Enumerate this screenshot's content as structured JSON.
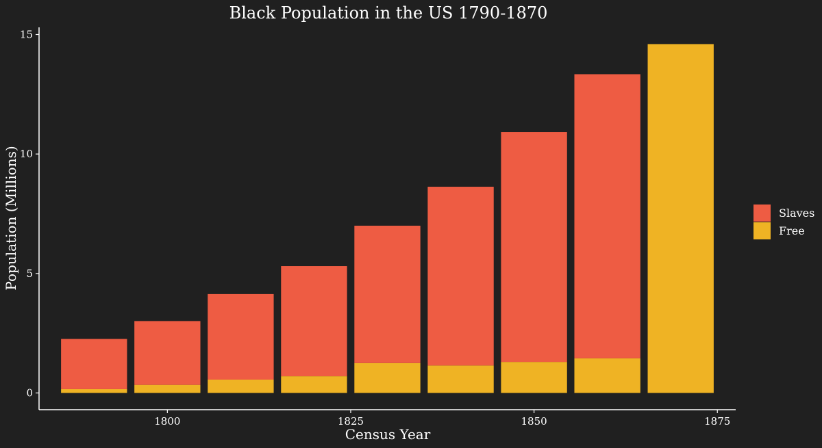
{
  "chart_data": {
    "type": "bar",
    "stacked": true,
    "title": "Black Population in the US 1790-1870",
    "xlabel": "Census Year",
    "ylabel": "Population (Millions)",
    "x": [
      1790,
      1800,
      1810,
      1820,
      1830,
      1840,
      1850,
      1860,
      1870
    ],
    "series": [
      {
        "name": "Slaves",
        "values": [
          2.1,
          2.67,
          3.58,
          4.61,
          5.75,
          7.48,
          9.62,
          11.89,
          0
        ],
        "color": "#ee5c43"
      },
      {
        "name": "Free",
        "values": [
          0.16,
          0.34,
          0.56,
          0.7,
          1.25,
          1.15,
          1.3,
          1.45,
          14.6
        ],
        "color": "#efb324"
      }
    ],
    "xlim": [
      1782.5,
      1877.5
    ],
    "ylim": [
      -0.7,
      15.3
    ],
    "xticks": [
      1800,
      1825,
      1850,
      1875
    ],
    "yticks": [
      0,
      5,
      10,
      15
    ],
    "grid": false,
    "legend_position": "right",
    "background": "#202020",
    "bar_width_years": 9
  }
}
